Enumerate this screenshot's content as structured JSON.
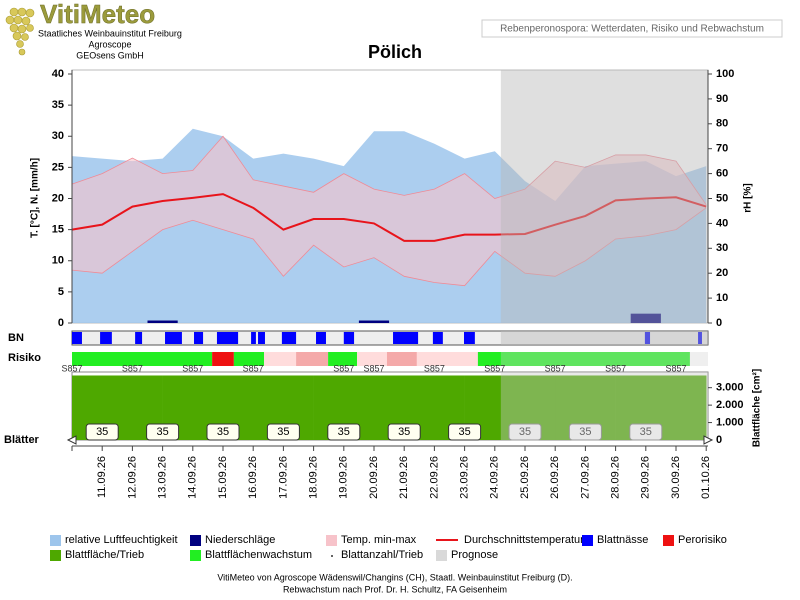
{
  "chart_data": {
    "type": "line",
    "logo_text": "VitiMeteo",
    "institution_lines": [
      "Staatliches Weinbauinstitut Freiburg",
      "Agroscope",
      "GEOsens GmbH"
    ],
    "subtitle": "Rebenperonospora: Wetterdaten, Risiko und Rebwachstum",
    "title": "Pölich",
    "ylabel": "T. [°C], N. [mm/h]",
    "y2label": "rH [%]",
    "x": [
      null,
      "11.09.26",
      "12.09.26",
      "13.09.26",
      "14.09.26",
      "15.09.26",
      "16.09.26",
      "17.09.26",
      "18.09.26",
      "19.09.26",
      "20.09.26",
      "21.09.26",
      "22.09.26",
      "23.09.26",
      "24.09.26",
      "25.09.26",
      "26.09.26",
      "27.09.26",
      "28.09.26",
      "29.09.26",
      "30.09.26",
      "01.10.26"
    ],
    "ylim": [
      0,
      40
    ],
    "yticks": [
      0,
      5,
      10,
      15,
      20,
      25,
      30,
      35,
      40
    ],
    "y2lim": [
      0,
      100
    ],
    "y2ticks": [
      0,
      10,
      20,
      30,
      40,
      50,
      60,
      70,
      80,
      90,
      100
    ],
    "grid": false,
    "series": [
      {
        "name": "relative Luftfeuchtigkeit",
        "type": "area",
        "axis": "y2",
        "color": "#9dc5ec",
        "values": [
          67,
          66,
          65,
          66,
          78,
          75,
          66,
          68,
          66,
          63,
          77,
          77,
          72,
          66,
          69,
          57,
          49,
          63,
          64,
          65,
          59,
          63
        ]
      },
      {
        "name": "Niederschläge",
        "type": "bar",
        "color": "#000080",
        "values": [
          0,
          0,
          0,
          0.4,
          0,
          0,
          0,
          0,
          0,
          0,
          0.4,
          0,
          0,
          0,
          0,
          0,
          0,
          0,
          0,
          1.5,
          0,
          0
        ]
      },
      {
        "name": "Temp. min-max",
        "type": "band",
        "color": "#f7c3ca",
        "max": [
          22.3,
          24,
          26.5,
          24,
          24.5,
          30,
          23,
          22,
          21,
          24,
          21.5,
          20.5,
          21.5,
          24,
          20,
          21.5,
          26,
          25,
          27,
          27,
          26,
          19
        ],
        "min": [
          8.5,
          8,
          11.5,
          15,
          16.5,
          15,
          13.5,
          7.5,
          12.5,
          9,
          10.5,
          7.5,
          6.5,
          6,
          11.5,
          8,
          7.5,
          10,
          13.5,
          14,
          15,
          18.5
        ]
      },
      {
        "name": "Durchschnittstemperatur",
        "type": "line",
        "color": "#e8141b",
        "values": [
          15,
          15.8,
          18.7,
          19.6,
          20.1,
          20.7,
          18.5,
          15,
          16.7,
          16.7,
          16,
          13.2,
          13.2,
          14.2,
          14.2,
          14.3,
          15.8,
          17.2,
          19.7,
          20,
          20.2,
          18.7
        ]
      }
    ],
    "leaf_wetness": {
      "label": "BN",
      "name": "Blattnässe",
      "color": "#0000ff",
      "periods": [
        [
          0,
          0.33
        ],
        [
          0.93,
          1.32
        ],
        [
          2.09,
          2.32
        ],
        [
          3.08,
          3.64
        ],
        [
          4.04,
          4.34
        ],
        [
          4.8,
          5.5
        ],
        [
          5.93,
          6.09
        ],
        [
          6.16,
          6.39
        ],
        [
          6.95,
          7.42
        ],
        [
          8.08,
          8.41
        ],
        [
          9.0,
          9.34
        ],
        [
          10.63,
          11.46
        ],
        [
          11.95,
          12.28
        ],
        [
          12.98,
          13.34
        ],
        [
          18.97,
          19.14
        ],
        [
          20.73,
          20.86
        ]
      ]
    },
    "risk": {
      "label": "Risiko",
      "name": "Perorisiko",
      "color": "#ee1111",
      "level_colors": [
        "#22ee22",
        "#ffdcdc",
        "#f4a9a9",
        "#ee1111"
      ],
      "segments": [
        {
          "start": 0,
          "end": 4.64,
          "level": 0
        },
        {
          "start": 4.64,
          "end": 5.36,
          "level": 3
        },
        {
          "start": 5.36,
          "end": 6.36,
          "level": 0
        },
        {
          "start": 6.36,
          "end": 7.42,
          "level": 1
        },
        {
          "start": 7.42,
          "end": 8.48,
          "level": 2
        },
        {
          "start": 8.48,
          "end": 9.44,
          "level": 0
        },
        {
          "start": 9.44,
          "end": 10.43,
          "level": 1
        },
        {
          "start": 10.43,
          "end": 11.42,
          "level": 2
        },
        {
          "start": 11.42,
          "end": 13.44,
          "level": 1
        },
        {
          "start": 13.44,
          "end": 20.46,
          "level": 0
        }
      ]
    },
    "growth": {
      "name": "Blattflächenwachstum",
      "color": "#22ee22"
    },
    "leaf_area": {
      "name": "Blattfläche/Trieb",
      "label": "Blattfläche [cm²]",
      "color": "#4ea800",
      "ylim": [
        0,
        3900
      ],
      "yticks": [
        0,
        {
          "value": 1000,
          "label": "1.000"
        },
        {
          "value": 2000,
          "label": "2.000"
        },
        {
          "value": 3000,
          "label": "3.000"
        }
      ],
      "values": [
        3700,
        3700,
        3700,
        3700,
        3700,
        3700,
        3700,
        3700,
        3700,
        3700,
        3700,
        3700,
        3700,
        3700,
        3700,
        3700,
        3700,
        3700,
        3700,
        3700,
        3700,
        null
      ]
    },
    "stages": [
      {
        "day": 0,
        "label": "S857"
      },
      {
        "day": 2,
        "label": "S857"
      },
      {
        "day": 4,
        "label": "S857"
      },
      {
        "day": 6,
        "label": "S857"
      },
      {
        "day": 9,
        "label": "S857"
      },
      {
        "day": 10,
        "label": "S857"
      },
      {
        "day": 12,
        "label": "S857"
      },
      {
        "day": 14,
        "label": "S857"
      },
      {
        "day": 16,
        "label": "S857"
      },
      {
        "day": 18,
        "label": "S857"
      },
      {
        "day": 20,
        "label": "S857"
      }
    ],
    "leaf_count": {
      "name": "Blattanzahl/Trieb",
      "label": "Blätter",
      "points": [
        {
          "day": 1,
          "value": 35
        },
        {
          "day": 3,
          "value": 35
        },
        {
          "day": 5,
          "value": 35
        },
        {
          "day": 7,
          "value": 35
        },
        {
          "day": 9,
          "value": 35
        },
        {
          "day": 11,
          "value": 35
        },
        {
          "day": 13,
          "value": 35
        },
        {
          "day": 15,
          "value": 35
        },
        {
          "day": 17,
          "value": 35
        },
        {
          "day": 19,
          "value": 35
        }
      ]
    },
    "forecast": {
      "name": "Prognose",
      "color": "#d9d9d9",
      "start": 14.2
    },
    "source_lines": [
      "VitiMeteo von Agroscope Wädenswil/Changins (CH), Staatl. Weinbauinstitut Freiburg (D).",
      "Rebwachstum nach Prof. Dr. H. Schultz, FA Geisenheim"
    ]
  }
}
